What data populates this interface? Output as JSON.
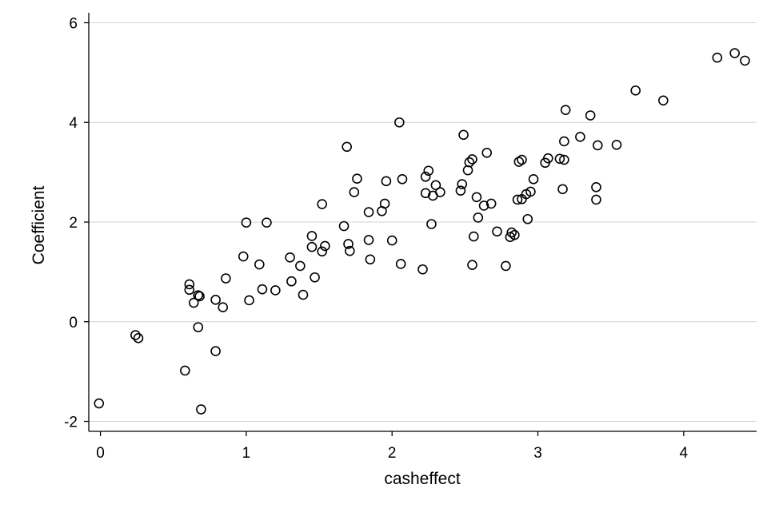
{
  "chart_data": {
    "type": "scatter",
    "title": "",
    "xlabel": "casheffect",
    "ylabel": "Coefficient",
    "xlim": [
      -0.08,
      4.5
    ],
    "ylim": [
      -2.2,
      6.2
    ],
    "xticks": [
      0,
      1,
      2,
      3,
      4
    ],
    "yticks": [
      -2,
      0,
      2,
      4,
      6
    ],
    "xtick_labels": [
      "0",
      "1",
      "2",
      "3",
      "4"
    ],
    "ytick_labels": [
      "-2",
      "0",
      "2",
      "4",
      "6"
    ],
    "grid": "horizontal",
    "marker": "hollow-circle",
    "points": [
      [
        -0.01,
        -1.64
      ],
      [
        0.24,
        -0.27
      ],
      [
        0.26,
        -0.33
      ],
      [
        0.58,
        -0.98
      ],
      [
        0.61,
        0.75
      ],
      [
        0.61,
        0.64
      ],
      [
        0.64,
        0.38
      ],
      [
        0.67,
        0.53
      ],
      [
        0.68,
        0.51
      ],
      [
        0.67,
        -0.11
      ],
      [
        0.69,
        -1.76
      ],
      [
        0.79,
        -0.59
      ],
      [
        0.79,
        0.44
      ],
      [
        0.84,
        0.29
      ],
      [
        0.86,
        0.87
      ],
      [
        0.98,
        1.31
      ],
      [
        1.0,
        1.99
      ],
      [
        1.02,
        0.43
      ],
      [
        1.09,
        1.15
      ],
      [
        1.11,
        0.65
      ],
      [
        1.14,
        1.99
      ],
      [
        1.2,
        0.63
      ],
      [
        1.3,
        1.29
      ],
      [
        1.31,
        0.81
      ],
      [
        1.37,
        1.12
      ],
      [
        1.39,
        0.54
      ],
      [
        1.45,
        1.72
      ],
      [
        1.45,
        1.5
      ],
      [
        1.47,
        0.89
      ],
      [
        1.52,
        2.36
      ],
      [
        1.52,
        1.41
      ],
      [
        1.54,
        1.52
      ],
      [
        1.67,
        1.92
      ],
      [
        1.69,
        3.51
      ],
      [
        1.7,
        1.56
      ],
      [
        1.71,
        1.42
      ],
      [
        1.74,
        2.6
      ],
      [
        1.76,
        2.87
      ],
      [
        1.84,
        2.2
      ],
      [
        1.84,
        1.64
      ],
      [
        1.85,
        1.25
      ],
      [
        1.93,
        2.22
      ],
      [
        1.95,
        2.37
      ],
      [
        1.96,
        2.82
      ],
      [
        2.0,
        1.63
      ],
      [
        2.05,
        4.0
      ],
      [
        2.06,
        1.16
      ],
      [
        2.07,
        2.86
      ],
      [
        2.21,
        1.05
      ],
      [
        2.23,
        2.58
      ],
      [
        2.23,
        2.91
      ],
      [
        2.25,
        3.03
      ],
      [
        2.27,
        1.96
      ],
      [
        2.28,
        2.53
      ],
      [
        2.3,
        2.74
      ],
      [
        2.33,
        2.6
      ],
      [
        2.47,
        2.63
      ],
      [
        2.48,
        2.76
      ],
      [
        2.49,
        3.75
      ],
      [
        2.52,
        3.04
      ],
      [
        2.53,
        3.2
      ],
      [
        2.55,
        3.26
      ],
      [
        2.55,
        1.14
      ],
      [
        2.56,
        1.71
      ],
      [
        2.58,
        2.5
      ],
      [
        2.59,
        2.09
      ],
      [
        2.63,
        2.33
      ],
      [
        2.65,
        3.39
      ],
      [
        2.68,
        2.37
      ],
      [
        2.72,
        1.81
      ],
      [
        2.78,
        1.12
      ],
      [
        2.81,
        1.7
      ],
      [
        2.82,
        1.79
      ],
      [
        2.84,
        1.74
      ],
      [
        2.86,
        2.45
      ],
      [
        2.87,
        3.21
      ],
      [
        2.89,
        3.25
      ],
      [
        2.89,
        2.46
      ],
      [
        2.92,
        2.56
      ],
      [
        2.93,
        2.06
      ],
      [
        2.95,
        2.61
      ],
      [
        2.97,
        2.86
      ],
      [
        3.05,
        3.19
      ],
      [
        3.07,
        3.28
      ],
      [
        3.15,
        3.27
      ],
      [
        3.17,
        2.66
      ],
      [
        3.18,
        3.25
      ],
      [
        3.18,
        3.62
      ],
      [
        3.19,
        4.25
      ],
      [
        3.29,
        3.71
      ],
      [
        3.36,
        4.14
      ],
      [
        3.4,
        2.7
      ],
      [
        3.4,
        2.45
      ],
      [
        3.41,
        3.54
      ],
      [
        3.54,
        3.55
      ],
      [
        3.67,
        4.64
      ],
      [
        3.86,
        4.44
      ],
      [
        4.23,
        5.3
      ],
      [
        4.35,
        5.39
      ],
      [
        4.42,
        5.24
      ]
    ]
  }
}
